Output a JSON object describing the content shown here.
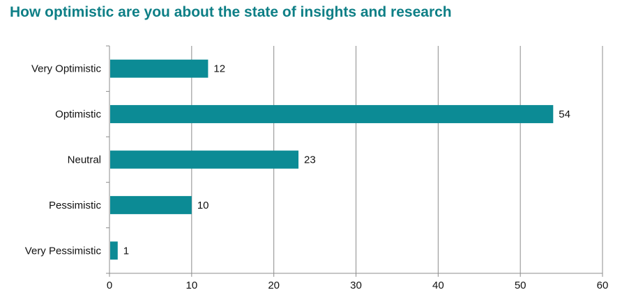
{
  "chart_data": {
    "type": "bar",
    "orientation": "horizontal",
    "title": "How optimistic are you about the state of insights and research",
    "categories": [
      "Very Optimistic",
      "Optimistic",
      "Neutral",
      "Pessimistic",
      "Very Pessimistic"
    ],
    "values": [
      12,
      54,
      23,
      10,
      1
    ],
    "xlabel": "",
    "ylabel": "",
    "xlim": [
      0,
      60
    ],
    "xticks": [
      0,
      10,
      20,
      30,
      40,
      50,
      60
    ],
    "grid": true,
    "data_labels": true,
    "bar_color": "#0c8b95",
    "title_color": "#0e7f86"
  }
}
